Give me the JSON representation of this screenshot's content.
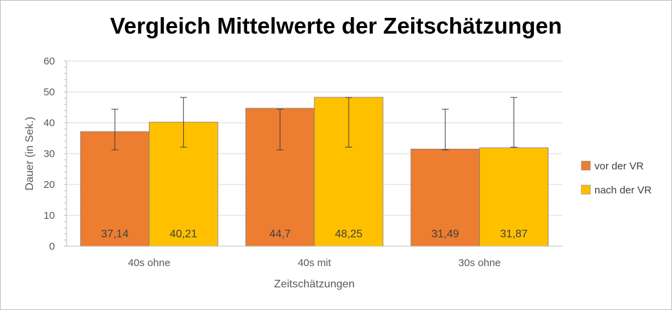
{
  "chart_data": {
    "type": "bar",
    "title": "Vergleich Mittelwerte der Zeitschätzungen",
    "xlabel": "Zeitschätzungen",
    "ylabel": "Dauer (in Sek.)",
    "ylim": [
      0,
      60
    ],
    "yticks": [
      "0",
      "10",
      "20",
      "30",
      "40",
      "50",
      "60"
    ],
    "categories": [
      "40s ohne",
      "40s mit",
      "30s ohne"
    ],
    "series": [
      {
        "name": "vor der VR",
        "color": "#ED7D31",
        "values": [
          37.14,
          44.7,
          31.49
        ],
        "labels": [
          "37,14",
          "44,7",
          "31,49"
        ],
        "error_low": [
          31.2,
          31.2,
          31.2
        ],
        "error_high": [
          44.4,
          44.4,
          44.4
        ]
      },
      {
        "name": "nach der VR",
        "color": "#FFC000",
        "values": [
          40.21,
          48.25,
          31.87
        ],
        "labels": [
          "40,21",
          "48,25",
          "31,87"
        ],
        "error_low": [
          32.1,
          32.1,
          32.1
        ],
        "error_high": [
          48.2,
          48.2,
          48.2
        ]
      }
    ],
    "grid": true,
    "legend_position": "right"
  }
}
